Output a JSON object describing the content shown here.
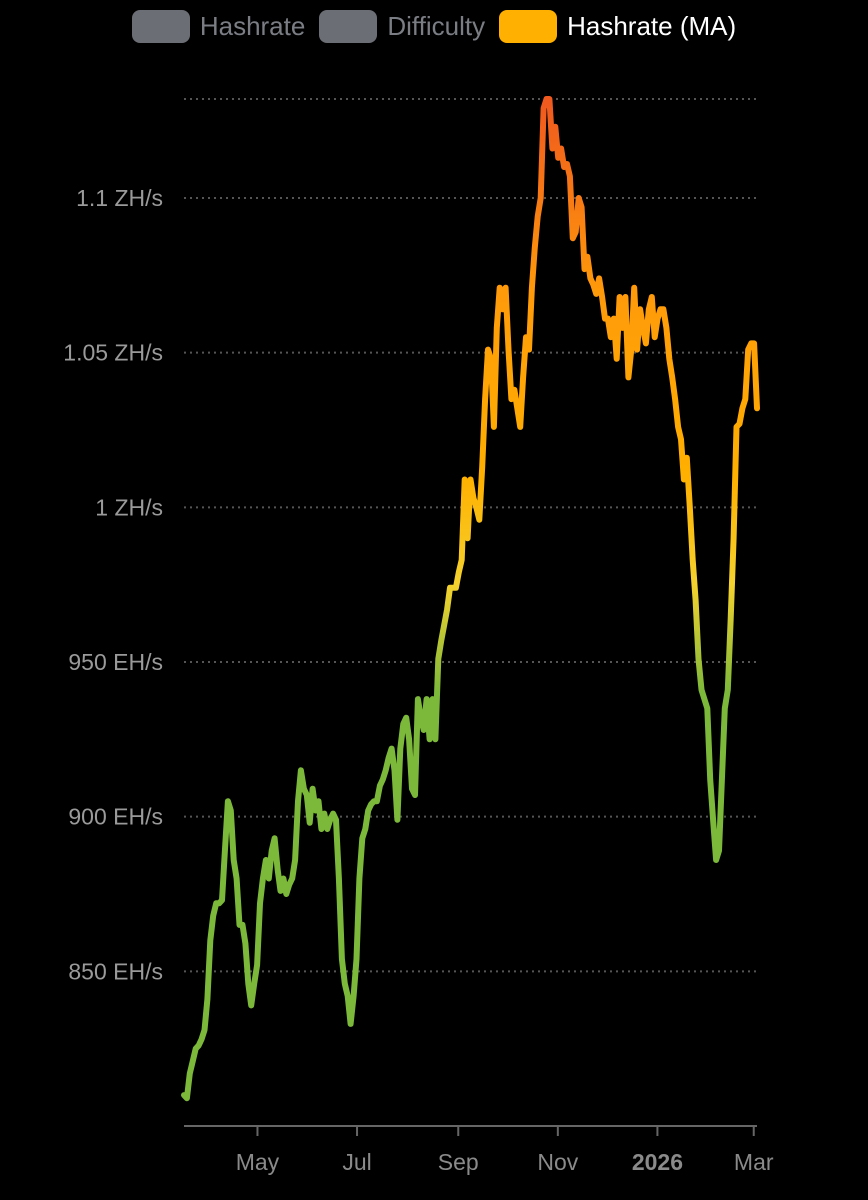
{
  "legend": [
    {
      "label": "Hashrate",
      "color": "#6b6e75",
      "text_color": "#7a7d84",
      "active": false
    },
    {
      "label": "Difficulty",
      "color": "#6b6e75",
      "text_color": "#7a7d84",
      "active": false
    },
    {
      "label": "Hashrate (MA)",
      "color": "#ffb000",
      "text_color": "#ffffff",
      "active": true
    }
  ],
  "chart_data": {
    "type": "line",
    "title": "",
    "xlabel": "",
    "ylabel": "",
    "series": [
      {
        "name": "Hashrate (MA)",
        "unit": "EH/s",
        "values": [
          810,
          809,
          817,
          821,
          825,
          826,
          828,
          831,
          841,
          860,
          868,
          872,
          872,
          873,
          889,
          905,
          902,
          886,
          880,
          865,
          865,
          859,
          846,
          839,
          846,
          852,
          872,
          880,
          886,
          880,
          889,
          893,
          883,
          876,
          880,
          875,
          878,
          880,
          886,
          905,
          915,
          909,
          907,
          898,
          909,
          902,
          905,
          896,
          901,
          896,
          899,
          901,
          899,
          880,
          854,
          846,
          842,
          833,
          842,
          854,
          880,
          893,
          896,
          902,
          904,
          905,
          905,
          910,
          912,
          915,
          919,
          922,
          915,
          899,
          922,
          930,
          932,
          925,
          909,
          907,
          938,
          932,
          928,
          938,
          925,
          938,
          925,
          951,
          957,
          962,
          967,
          974,
          974,
          974,
          979,
          983,
          1009,
          990,
          1009,
          1003,
          1000,
          996,
          1013,
          1035,
          1051,
          1048,
          1026,
          1058,
          1071,
          1064,
          1071,
          1051,
          1035,
          1038,
          1032,
          1026,
          1042,
          1055,
          1051,
          1071,
          1084,
          1094,
          1100,
          1129,
          1132,
          1132,
          1116,
          1123,
          1113,
          1116,
          1110,
          1111,
          1107,
          1087,
          1089,
          1100,
          1097,
          1077,
          1081,
          1074,
          1072,
          1069,
          1074,
          1068,
          1061,
          1061,
          1055,
          1061,
          1048,
          1068,
          1058,
          1068,
          1042,
          1051,
          1071,
          1051,
          1064,
          1058,
          1053,
          1064,
          1068,
          1055,
          1061,
          1064,
          1064,
          1058,
          1048,
          1042,
          1035,
          1026,
          1022,
          1009,
          1016,
          1000,
          983,
          970,
          951,
          941,
          938,
          935,
          912,
          899,
          886,
          889,
          912,
          935,
          941,
          964,
          990,
          1026,
          1027,
          1032,
          1035,
          1051,
          1053,
          1053,
          1032
        ]
      }
    ],
    "x_range": [
      "2025-03-17",
      "2026-03-03"
    ],
    "ylim": [
      800,
      1132
    ],
    "y_ticks": [
      {
        "value": 850,
        "label": "850 EH/s"
      },
      {
        "value": 900,
        "label": "900 EH/s"
      },
      {
        "value": 950,
        "label": "950 EH/s"
      },
      {
        "value": 1000,
        "label": "1 ZH/s"
      },
      {
        "value": 1050,
        "label": "1.05 ZH/s"
      },
      {
        "value": 1100,
        "label": "1.1 ZH/s"
      }
    ],
    "x_ticks": [
      {
        "date": "2025-05-01",
        "label": "May",
        "bold": false
      },
      {
        "date": "2025-07-01",
        "label": "Jul",
        "bold": false
      },
      {
        "date": "2025-09-01",
        "label": "Sep",
        "bold": false
      },
      {
        "date": "2025-11-01",
        "label": "Nov",
        "bold": false
      },
      {
        "date": "2026-01-01",
        "label": "2026",
        "bold": true
      },
      {
        "date": "2026-03-01",
        "label": "Mar",
        "bold": false
      }
    ],
    "grid": true,
    "legend_position": "top",
    "color_scale": [
      {
        "value": 940,
        "color": "#7cb83a"
      },
      {
        "value": 975,
        "color": "#f5d22e"
      },
      {
        "value": 1010,
        "color": "#ffb000"
      },
      {
        "value": 1070,
        "color": "#ff9a0a"
      },
      {
        "value": 1130,
        "color": "#f05a1e"
      }
    ]
  }
}
